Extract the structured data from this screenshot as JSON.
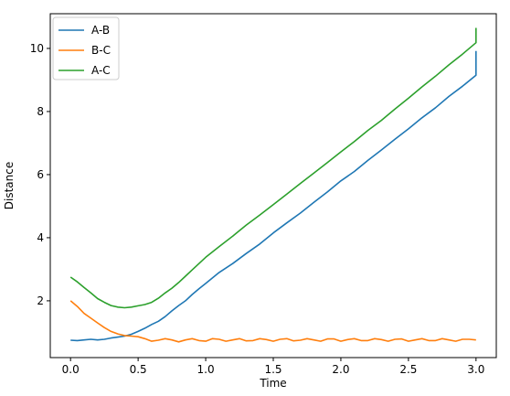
{
  "chart_data": {
    "type": "line",
    "title": "",
    "xlabel": "Time",
    "ylabel": "Distance",
    "xlim": [
      -0.15,
      3.15
    ],
    "ylim": [
      0.2,
      11.1
    ],
    "x_ticks": [
      0.0,
      0.5,
      1.0,
      1.5,
      2.0,
      2.5,
      3.0
    ],
    "x_tick_labels": [
      "0.0",
      "0.5",
      "1.0",
      "1.5",
      "2.0",
      "2.5",
      "3.0"
    ],
    "y_ticks": [
      2,
      4,
      6,
      8,
      10
    ],
    "y_tick_labels": [
      "2",
      "4",
      "6",
      "8",
      "10"
    ],
    "grid": false,
    "legend_position": "top-left",
    "series": [
      {
        "name": "A-B",
        "color": "#1f77b4",
        "x": [
          0.0,
          0.05,
          0.1,
          0.15,
          0.2,
          0.25,
          0.3,
          0.35,
          0.4,
          0.45,
          0.5,
          0.55,
          0.6,
          0.65,
          0.7,
          0.75,
          0.8,
          0.85,
          0.9,
          0.95,
          1.0,
          1.1,
          1.2,
          1.3,
          1.4,
          1.5,
          1.6,
          1.7,
          1.8,
          1.9,
          2.0,
          2.1,
          2.2,
          2.3,
          2.4,
          2.5,
          2.6,
          2.7,
          2.8,
          2.9,
          3.0
        ],
        "y": [
          0.75,
          0.74,
          0.76,
          0.78,
          0.76,
          0.78,
          0.82,
          0.85,
          0.88,
          0.94,
          1.03,
          1.13,
          1.25,
          1.35,
          1.5,
          1.68,
          1.85,
          2.0,
          2.2,
          2.38,
          2.55,
          2.9,
          3.18,
          3.5,
          3.8,
          4.15,
          4.47,
          4.78,
          5.12,
          5.45,
          5.8,
          6.1,
          6.45,
          6.78,
          7.12,
          7.45,
          7.8,
          8.12,
          8.48,
          8.8,
          9.15
        ],
        "x_end": [
          3.0
        ],
        "y_end": [
          9.92
        ]
      },
      {
        "name": "B-C",
        "color": "#ff7f0e",
        "x": [
          0.0,
          0.05,
          0.1,
          0.15,
          0.2,
          0.25,
          0.3,
          0.35,
          0.4,
          0.45,
          0.5,
          0.55,
          0.6,
          0.65,
          0.7,
          0.75,
          0.8,
          0.85,
          0.9,
          0.95,
          1.0,
          1.05,
          1.1,
          1.15,
          1.2,
          1.25,
          1.3,
          1.35,
          1.4,
          1.45,
          1.5,
          1.55,
          1.6,
          1.65,
          1.7,
          1.75,
          1.8,
          1.85,
          1.9,
          1.95,
          2.0,
          2.05,
          2.1,
          2.15,
          2.2,
          2.25,
          2.3,
          2.35,
          2.4,
          2.45,
          2.5,
          2.55,
          2.6,
          2.65,
          2.7,
          2.75,
          2.8,
          2.85,
          2.9,
          2.95,
          3.0
        ],
        "y": [
          2.0,
          1.82,
          1.6,
          1.45,
          1.3,
          1.15,
          1.03,
          0.95,
          0.9,
          0.88,
          0.86,
          0.8,
          0.72,
          0.75,
          0.8,
          0.76,
          0.7,
          0.76,
          0.8,
          0.74,
          0.72,
          0.8,
          0.78,
          0.72,
          0.76,
          0.8,
          0.73,
          0.74,
          0.8,
          0.77,
          0.72,
          0.78,
          0.8,
          0.73,
          0.75,
          0.8,
          0.76,
          0.72,
          0.79,
          0.79,
          0.72,
          0.77,
          0.8,
          0.74,
          0.74,
          0.8,
          0.77,
          0.72,
          0.78,
          0.79,
          0.72,
          0.76,
          0.8,
          0.74,
          0.74,
          0.8,
          0.76,
          0.72,
          0.78,
          0.78,
          0.76
        ]
      },
      {
        "name": "A-C",
        "color": "#2ca02c",
        "x": [
          0.0,
          0.05,
          0.1,
          0.15,
          0.2,
          0.25,
          0.3,
          0.35,
          0.4,
          0.45,
          0.5,
          0.55,
          0.6,
          0.65,
          0.7,
          0.75,
          0.8,
          0.85,
          0.9,
          0.95,
          1.0,
          1.1,
          1.2,
          1.3,
          1.4,
          1.5,
          1.6,
          1.7,
          1.8,
          1.9,
          2.0,
          2.1,
          2.2,
          2.3,
          2.4,
          2.5,
          2.6,
          2.7,
          2.8,
          2.9,
          3.0
        ],
        "y": [
          2.75,
          2.6,
          2.42,
          2.25,
          2.07,
          1.95,
          1.85,
          1.8,
          1.78,
          1.8,
          1.84,
          1.88,
          1.95,
          2.08,
          2.25,
          2.4,
          2.58,
          2.78,
          2.98,
          3.18,
          3.38,
          3.72,
          4.05,
          4.4,
          4.72,
          5.05,
          5.38,
          5.72,
          6.05,
          6.38,
          6.72,
          7.05,
          7.4,
          7.72,
          8.08,
          8.42,
          8.78,
          9.12,
          9.48,
          9.82,
          10.18
        ],
        "x_end": [
          3.0
        ],
        "y_end": [
          10.65
        ]
      }
    ]
  }
}
